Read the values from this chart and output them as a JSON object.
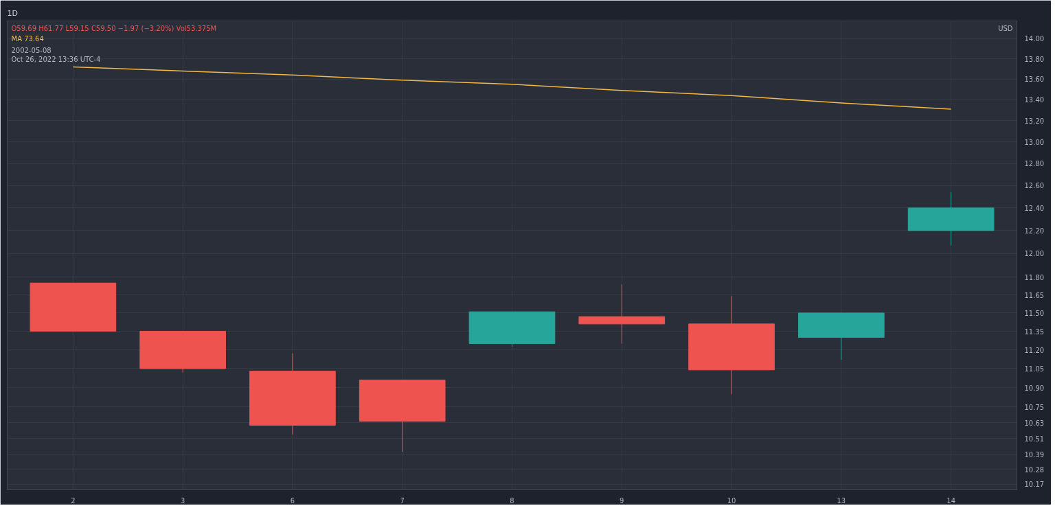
{
  "chart_data": {
    "type": "candlestick",
    "title": "1D",
    "ylabel": "USD",
    "categories": [
      "2",
      "3",
      "6",
      "7",
      "8",
      "9",
      "10",
      "13",
      "14"
    ],
    "ohlc": [
      [
        11.75,
        11.75,
        11.35,
        11.35
      ],
      [
        11.35,
        11.35,
        11.02,
        11.05
      ],
      [
        11.03,
        11.17,
        10.54,
        10.61
      ],
      [
        10.96,
        10.96,
        10.41,
        10.64
      ],
      [
        11.25,
        11.51,
        11.22,
        11.51
      ],
      [
        11.47,
        11.74,
        11.25,
        11.41
      ],
      [
        11.41,
        11.64,
        10.85,
        11.04
      ],
      [
        11.3,
        11.5,
        11.12,
        11.5
      ],
      [
        12.2,
        12.54,
        12.07,
        12.4
      ]
    ],
    "colors": [
      "#ef5350",
      "#ef5350",
      "#ef5350",
      "#ef5350",
      "#26a69a",
      "#ef5350",
      "#ef5350",
      "#26a69a",
      "#26a69a"
    ],
    "series": [
      {
        "type": "line",
        "color": "#f5b942",
        "values": [
          13.72,
          13.68,
          13.64,
          13.59,
          13.55,
          13.49,
          13.44,
          13.37,
          13.31
        ]
      }
    ],
    "log": true,
    "ylim": [
      10.13,
      14.18
    ],
    "yticks": [
      {
        "value": 10.17,
        "label": "10.17"
      },
      {
        "value": 10.28,
        "label": "10.28"
      },
      {
        "value": 10.39,
        "label": "10.39"
      },
      {
        "value": 10.51,
        "label": "10.51"
      },
      {
        "value": 10.63,
        "label": "10.63"
      },
      {
        "value": 10.75,
        "label": "10.75"
      },
      {
        "value": 10.9,
        "label": "10.90"
      },
      {
        "value": 11.05,
        "label": "11.05"
      },
      {
        "value": 11.2,
        "label": "11.20"
      },
      {
        "value": 11.35,
        "label": "11.35"
      },
      {
        "value": 11.5,
        "label": "11.50"
      },
      {
        "value": 11.65,
        "label": "11.65"
      },
      {
        "value": 11.8,
        "label": "11.80"
      },
      {
        "value": 12,
        "label": "12.00"
      },
      {
        "value": 12.2,
        "label": "12.20"
      },
      {
        "value": 12.4,
        "label": "12.40"
      },
      {
        "value": 12.6,
        "label": "12.60"
      },
      {
        "value": 12.8,
        "label": "12.80"
      },
      {
        "value": 13,
        "label": "13.00"
      },
      {
        "value": 13.2,
        "label": "13.20"
      },
      {
        "value": 13.4,
        "label": "13.40"
      },
      {
        "value": 13.6,
        "label": "13.60"
      },
      {
        "value": 13.8,
        "label": "13.80"
      },
      {
        "value": 14,
        "label": "14.00"
      }
    ],
    "grid": true,
    "annotations": [
      "O59.69 H61.77 L59.15 C59.50 −1.97 (−3.20%) Vol53.375M",
      "MA 73.64",
      "2002-05-08",
      "Oct 26, 2022 13:36 UTC-4"
    ]
  }
}
